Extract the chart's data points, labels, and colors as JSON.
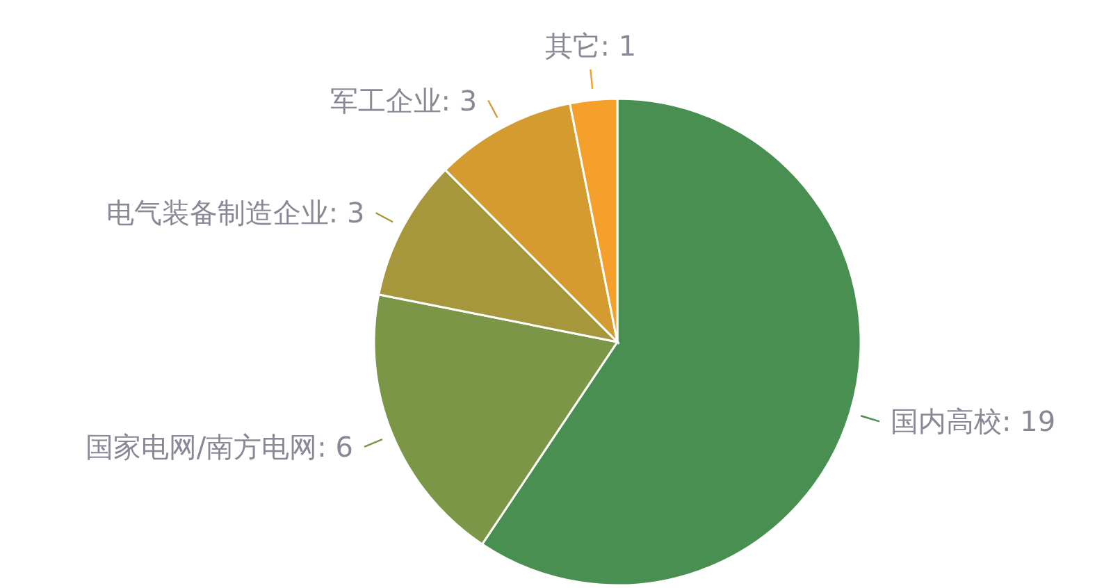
{
  "chart_data": {
    "type": "pie",
    "categories": [
      "国内高校",
      "国家电网/南方电网",
      "电气装备制造企业",
      "军工企业",
      "其它"
    ],
    "values": [
      19,
      6,
      3,
      3,
      1
    ],
    "colors": [
      "#4a8f52",
      "#7a9646",
      "#a6963c",
      "#d49c30",
      "#f5a02a"
    ],
    "value_labels": [
      ": 19",
      ": 6",
      ": 3",
      ": 3",
      ": 1"
    ]
  }
}
